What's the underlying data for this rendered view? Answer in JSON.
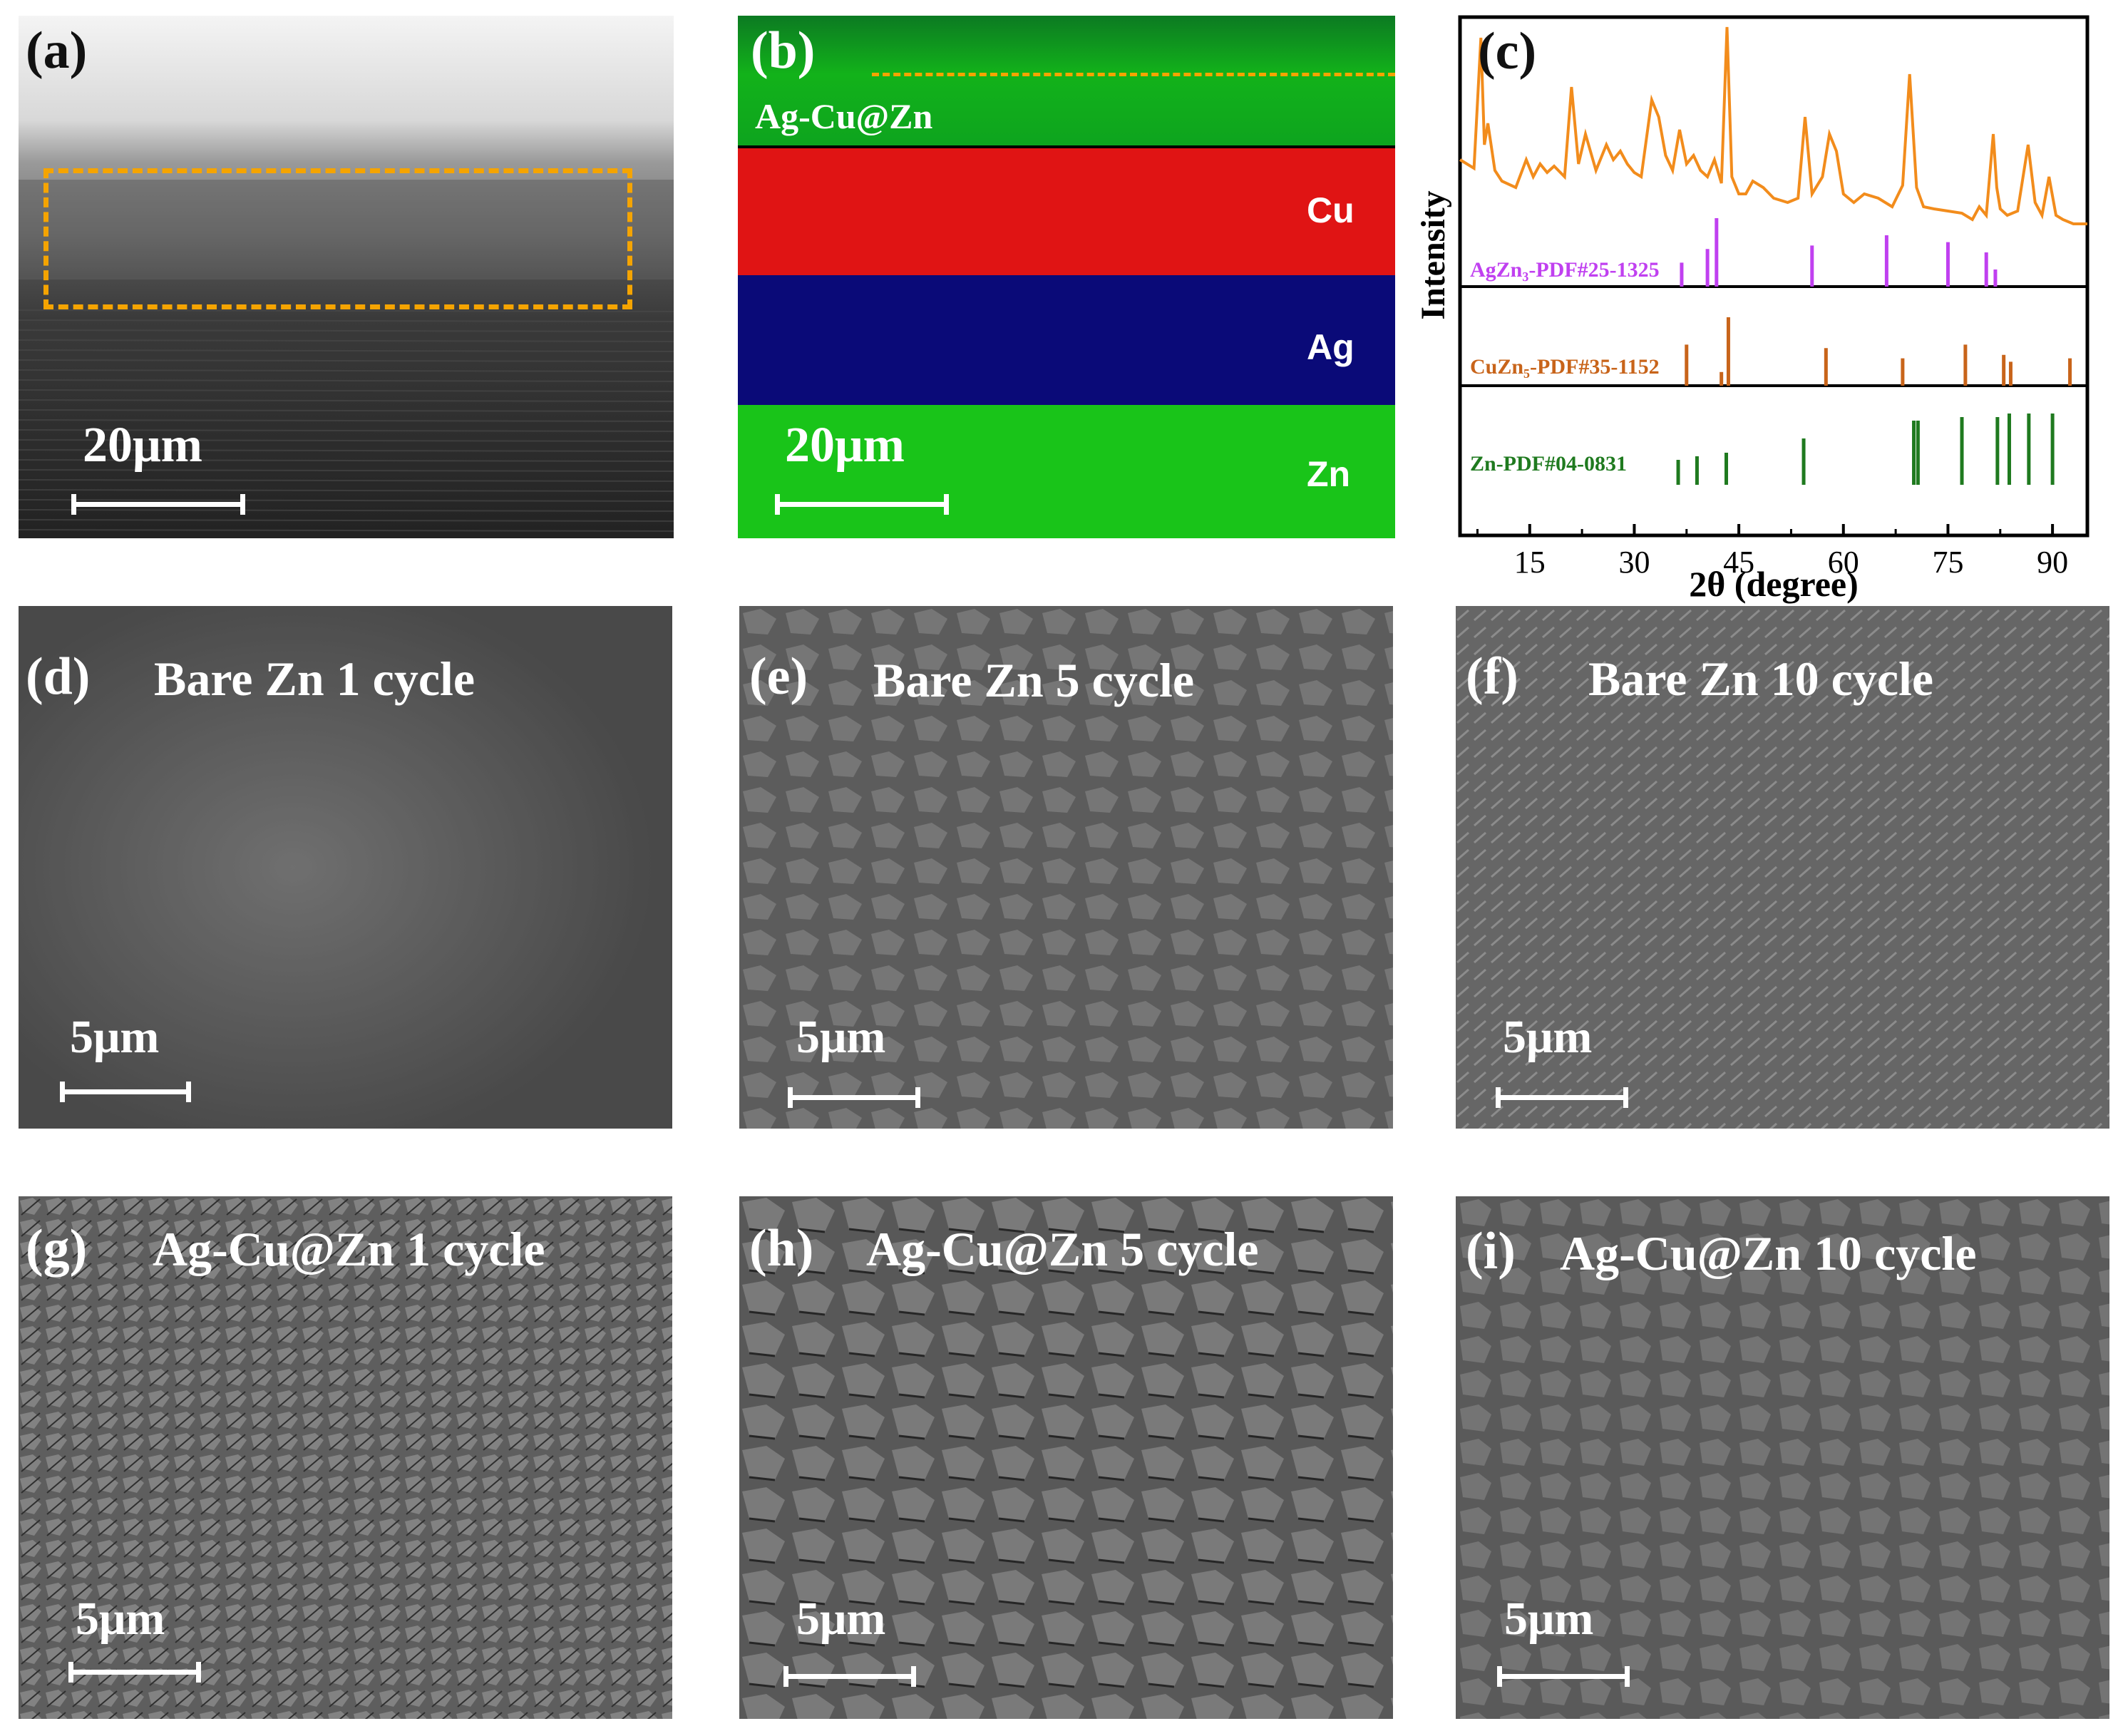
{
  "panels": {
    "a": {
      "label": "(a)",
      "scale": "20μm"
    },
    "b": {
      "label": "(b)",
      "scale": "20μm",
      "layers": [
        "Ag-Cu@Zn",
        "Cu",
        "Ag",
        "Zn"
      ]
    },
    "c": {
      "label": "(c)"
    },
    "d": {
      "label": "(d)",
      "title": "Bare Zn  1 cycle",
      "scale": "5μm"
    },
    "e": {
      "label": "(e)",
      "title": "Bare Zn  5 cycle",
      "scale": "5μm"
    },
    "f": {
      "label": "(f)",
      "title": "Bare Zn  10 cycle",
      "scale": "5μm"
    },
    "g": {
      "label": "(g)",
      "title": "Ag-Cu@Zn  1 cycle",
      "scale": "5μm"
    },
    "h": {
      "label": "(h)",
      "title": "Ag-Cu@Zn  5 cycle",
      "scale": "5μm"
    },
    "i": {
      "label": "(i)",
      "title": "Ag-Cu@Zn  10 cycle",
      "scale": "5μm"
    }
  },
  "colors": {
    "xrd_sample": "#f28c1c",
    "agzn3": "#c040f0",
    "cuzn5": "#c8641a",
    "zn": "#1f7a1f",
    "box_dash": "#f5a400",
    "eds_cu": "#e01414",
    "eds_ag": "#0a0a78",
    "eds_zn": "#19c419"
  },
  "chart_data": {
    "type": "line",
    "xlabel": "2θ (degree)",
    "ylabel": "Intensity",
    "xlim": [
      5,
      95
    ],
    "xticks": [
      15,
      30,
      45,
      60,
      75,
      90
    ],
    "sample_pattern": {
      "x": [
        5,
        7,
        8,
        8.5,
        9,
        10,
        11,
        13,
        14.5,
        15.5,
        16.5,
        17.5,
        18.5,
        20,
        21,
        22,
        23,
        24.5,
        26,
        27,
        28,
        29,
        30,
        31,
        32.5,
        33.5,
        34.5,
        35.5,
        36.5,
        37.5,
        38.5,
        39.5,
        40.5,
        41.5,
        42.5,
        43.3,
        44,
        45,
        46,
        47,
        48.5,
        50,
        52,
        53.5,
        54.5,
        55.5,
        57,
        58,
        59,
        60,
        61.5,
        63,
        65,
        67,
        68.5,
        69.5,
        70.5,
        71.5,
        73,
        75,
        77,
        78.5,
        79.5,
        80.5,
        81.5,
        82,
        82.5,
        83.5,
        85,
        86.5,
        87.5,
        88.5,
        89.5,
        90.5,
        91.5,
        93,
        95
      ],
      "y": [
        0.38,
        0.34,
        0.95,
        0.45,
        0.55,
        0.33,
        0.28,
        0.25,
        0.38,
        0.3,
        0.36,
        0.32,
        0.35,
        0.3,
        0.72,
        0.36,
        0.5,
        0.33,
        0.45,
        0.38,
        0.42,
        0.36,
        0.32,
        0.3,
        0.66,
        0.58,
        0.4,
        0.33,
        0.52,
        0.36,
        0.4,
        0.33,
        0.3,
        0.38,
        0.27,
        1.0,
        0.3,
        0.22,
        0.22,
        0.28,
        0.25,
        0.2,
        0.18,
        0.2,
        0.58,
        0.22,
        0.3,
        0.5,
        0.42,
        0.22,
        0.18,
        0.22,
        0.2,
        0.16,
        0.26,
        0.78,
        0.25,
        0.16,
        0.15,
        0.14,
        0.13,
        0.1,
        0.16,
        0.12,
        0.5,
        0.25,
        0.15,
        0.12,
        0.14,
        0.45,
        0.18,
        0.12,
        0.3,
        0.12,
        0.1,
        0.08,
        0.08
      ]
    },
    "references": [
      {
        "name": "AgZn₃-PDF#25-1325",
        "peaks": [
          [
            36.8,
            0.35
          ],
          [
            40.5,
            0.55
          ],
          [
            41.8,
            1.0
          ],
          [
            55.5,
            0.6
          ],
          [
            66.2,
            0.75
          ],
          [
            75,
            0.65
          ],
          [
            80.5,
            0.5
          ],
          [
            81.8,
            0.25
          ]
        ]
      },
      {
        "name": "CuZn₅-PDF#35-1152",
        "peaks": [
          [
            37.5,
            0.6
          ],
          [
            42.5,
            0.2
          ],
          [
            43.5,
            1.0
          ],
          [
            57.5,
            0.55
          ],
          [
            68.5,
            0.4
          ],
          [
            77.5,
            0.6
          ],
          [
            83,
            0.45
          ],
          [
            84,
            0.35
          ],
          [
            92.5,
            0.4
          ]
        ]
      },
      {
        "name": "Zn-PDF#04-0831",
        "peaks": [
          [
            36.3,
            0.35
          ],
          [
            39,
            0.4
          ],
          [
            43.2,
            0.45
          ],
          [
            54.3,
            0.65
          ],
          [
            70.1,
            0.9
          ],
          [
            70.7,
            0.9
          ],
          [
            77,
            0.95
          ],
          [
            82.1,
            0.95
          ],
          [
            83.8,
            1.0
          ],
          [
            86.6,
            1.0
          ],
          [
            90,
            1.0
          ]
        ]
      }
    ]
  }
}
